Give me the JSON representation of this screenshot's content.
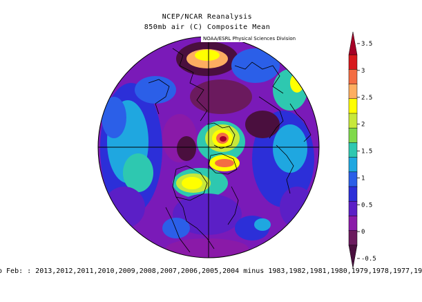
{
  "titles": {
    "line1": "NCEP/NCAR Reanalysis",
    "line2": "850mb air (C) Composite Mean",
    "credit": "NOAA/ESRL Physical Sciences Division"
  },
  "colorbar": {
    "ticks": [
      "3.5",
      "3",
      "2.5",
      "2",
      "1.5",
      "1",
      "0.5",
      "0",
      "-0.5"
    ],
    "colors": [
      "#a50026",
      "#d7191c",
      "#f46d43",
      "#fdae61",
      "#ffff00",
      "#c7e83a",
      "#7fd94a",
      "#2ec8b0",
      "#1fa7e0",
      "#2b5fe8",
      "#2c2fd8",
      "#5b1fc6",
      "#8a1aa8",
      "#6b1a5e",
      "#4a0f3e"
    ]
  },
  "caption": "o Feb: : 2013,2012,2011,2010,2009,2008,2007,2006,2005,2004 minus 1983,1982,1981,1980,1979,1978,1977,19",
  "map": {
    "projection": "north-polar-stereographic",
    "field": "850mb air temperature composite mean difference",
    "units": "C"
  }
}
